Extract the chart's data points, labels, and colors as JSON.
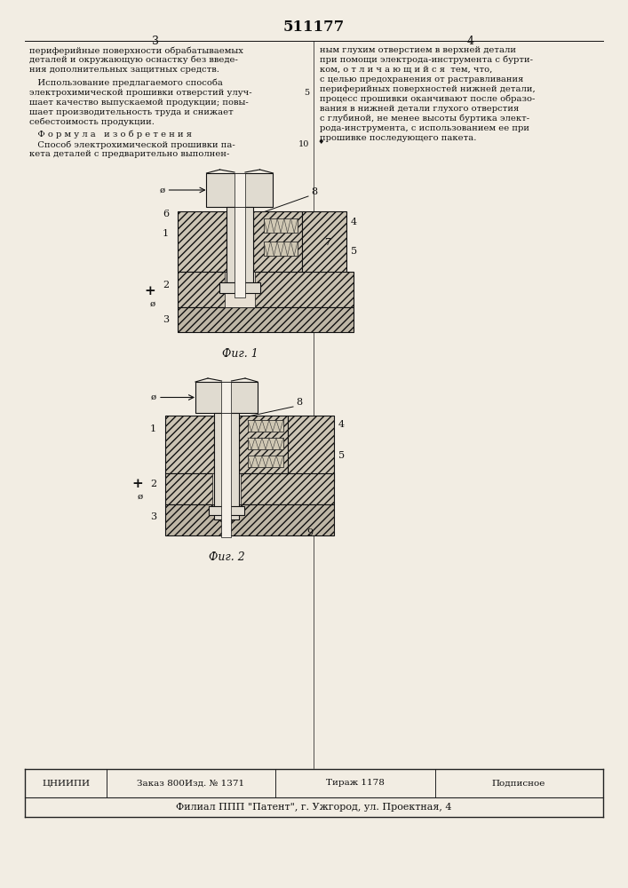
{
  "patent_number": "511177",
  "bg_color": "#f2ede3",
  "text_color": "#111111",
  "fig1_caption": "Фиг. 1",
  "fig2_caption": "Фиг. 2",
  "bottom_row1_cols": [
    "ЦНИИПИ",
    "Заказ 800Изд. № 1371",
    "Тираж 1178",
    "Подписное"
  ],
  "bottom_row2": "Филиал ППП \"Патент\", г. Ужгород, ул. Проектная, 4",
  "left_texts": [
    [
      "периферийные поверхности обрабатываемых",
      52
    ],
    [
      "деталей и окружающую оснастку без введе-",
      63
    ],
    [
      "ния дополнительных защитных средств.",
      74
    ],
    [
      "   Использование предлагаемого способа",
      89
    ],
    [
      "электрохимической прошивки отверстий улуч-",
      100
    ],
    [
      "шает качество выпускаемой продукции; повы-",
      111
    ],
    [
      "шает производительность труда и снижает",
      122
    ],
    [
      "себестоимость продукции.",
      133
    ],
    [
      "   Ф о р м у л а   и з о б р е т е н и я",
      147
    ],
    [
      "   Способ электрохимической прошивки па-",
      158
    ],
    [
      "кета деталей с предварительно выполнен-",
      169
    ]
  ],
  "right_texts": [
    [
      "ным глухим отверстием в верхней детали",
      52
    ],
    [
      "при помощи электрода-инструмента с бурти-",
      63
    ],
    [
      "ком, о т л и ч а ю щ и й с я  тем, что,",
      74
    ],
    [
      "с целью предохранения от растравливания",
      85
    ],
    [
      "периферийных поверхностей нижней детали,",
      96
    ],
    [
      "процесс прошивки оканчивают после образо-",
      107
    ],
    [
      "вания в нижней детали глухого отверстия",
      118
    ],
    [
      "с глубиной, не менее высоты буртика элект-",
      129
    ],
    [
      "рода-инструмента, с использованием ее при",
      140
    ],
    [
      "прошивке последующего пакета.",
      151
    ]
  ]
}
